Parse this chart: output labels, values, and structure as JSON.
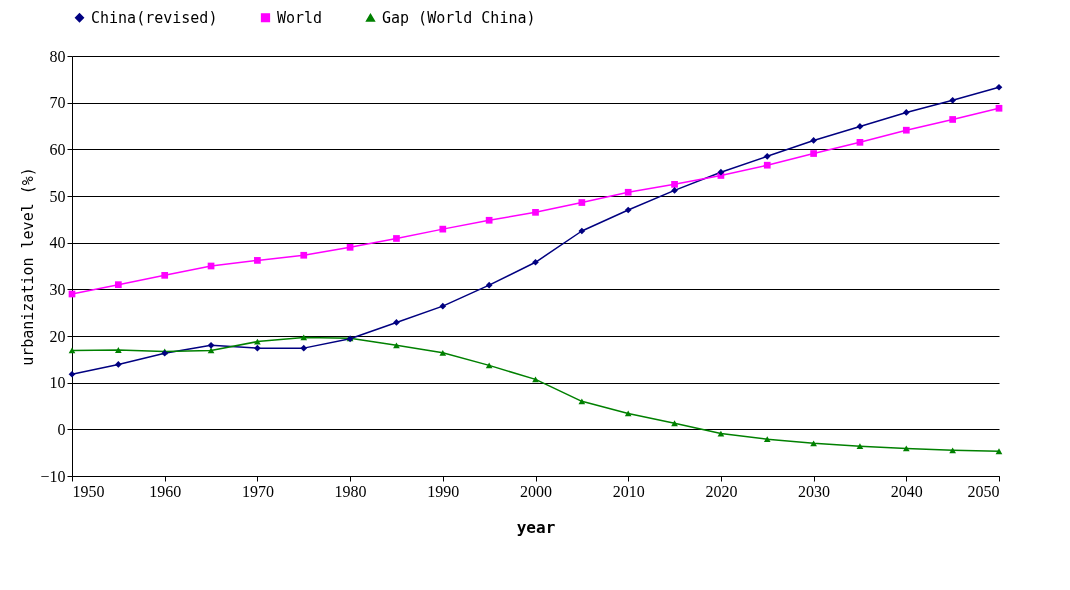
{
  "chart_data": {
    "type": "line",
    "xlabel": "year",
    "ylabel": "urbanization level (%)",
    "x": [
      1950,
      1955,
      1960,
      1965,
      1970,
      1975,
      1980,
      1985,
      1990,
      1995,
      2000,
      2005,
      2010,
      2015,
      2020,
      2025,
      2030,
      2035,
      2040,
      2045,
      2050
    ],
    "series": [
      {
        "name": "China(revised)",
        "color": "#000080",
        "marker": "diamond",
        "values": [
          11.8,
          13.9,
          16.3,
          18.0,
          17.4,
          17.4,
          19.4,
          22.9,
          26.4,
          30.9,
          35.8,
          42.5,
          47.0,
          51.2,
          55.1,
          58.5,
          61.9,
          64.9,
          67.9,
          70.5,
          73.3
        ]
      },
      {
        "name": "World",
        "color": "#ff00ff",
        "marker": "square",
        "values": [
          29.0,
          31.0,
          33.0,
          35.0,
          36.2,
          37.3,
          39.0,
          40.9,
          42.9,
          44.8,
          46.5,
          48.6,
          50.8,
          52.5,
          54.4,
          56.6,
          59.1,
          61.5,
          64.1,
          66.4,
          68.8
        ]
      },
      {
        "name": "Gap (World China)",
        "color": "#008000",
        "marker": "triangle",
        "values": [
          16.9,
          17.0,
          16.7,
          16.9,
          18.8,
          19.7,
          19.5,
          18.0,
          16.4,
          13.7,
          10.7,
          6.0,
          3.4,
          1.3,
          -0.9,
          -2.1,
          -3.0,
          -3.6,
          -4.1,
          -4.5,
          -4.7
        ]
      }
    ],
    "xlim": [
      1950,
      2050
    ],
    "xticks": [
      1950,
      1960,
      1970,
      1980,
      1990,
      2000,
      2010,
      2020,
      2030,
      2040,
      2050
    ],
    "ylim": [
      -10,
      80
    ],
    "yticks": [
      -10,
      0,
      10,
      20,
      30,
      40,
      50,
      60,
      70,
      80
    ],
    "grid": "y",
    "legend": "top"
  }
}
